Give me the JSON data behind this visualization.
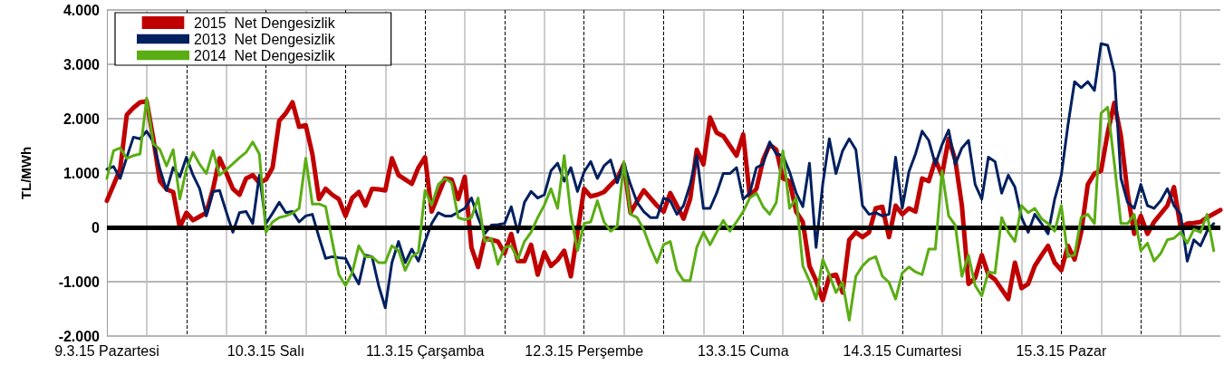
{
  "chart_data": {
    "type": "line",
    "ylabel": "TL/MWh",
    "categories": [
      "9.3.15 Pazartesi",
      null,
      null,
      null,
      null,
      null,
      null,
      null,
      null,
      null,
      null,
      null,
      null,
      null,
      null,
      null,
      null,
      null,
      null,
      null,
      null,
      null,
      null,
      null,
      "10.3.15 Salı",
      null,
      null,
      null,
      null,
      null,
      null,
      null,
      null,
      null,
      null,
      null,
      null,
      null,
      null,
      null,
      null,
      null,
      null,
      null,
      null,
      null,
      null,
      null,
      "11.3.15 Çarşamba",
      null,
      null,
      null,
      null,
      null,
      null,
      null,
      null,
      null,
      null,
      null,
      null,
      null,
      null,
      null,
      null,
      null,
      null,
      null,
      null,
      null,
      null,
      null,
      "12.3.15 Perşembe",
      null,
      null,
      null,
      null,
      null,
      null,
      null,
      null,
      null,
      null,
      null,
      null,
      null,
      null,
      null,
      null,
      null,
      null,
      null,
      null,
      null,
      null,
      null,
      "13.3.15 Cuma",
      null,
      null,
      null,
      null,
      null,
      null,
      null,
      null,
      null,
      null,
      null,
      null,
      null,
      null,
      null,
      null,
      null,
      null,
      null,
      null,
      null,
      null,
      null,
      "14.3.15 Cumartesi",
      null,
      null,
      null,
      null,
      null,
      null,
      null,
      null,
      null,
      null,
      null,
      null,
      null,
      null,
      null,
      null,
      null,
      null,
      null,
      null,
      null,
      null,
      null,
      "15.3.15 Pazar",
      null,
      null,
      null,
      null,
      null,
      null,
      null,
      null,
      null,
      null,
      null,
      null,
      null,
      null,
      null,
      null,
      null,
      null,
      null,
      null,
      null,
      null,
      null,
      null
    ],
    "ylim": [
      -2000,
      4000
    ],
    "yticks": [
      {
        "value": -2000,
        "label": "-2.000"
      },
      {
        "value": -1000,
        "label": "-1.000"
      },
      {
        "value": 0,
        "label": "0"
      },
      {
        "value": 1000,
        "label": "1.000"
      },
      {
        "value": 2000,
        "label": "2.000"
      },
      {
        "value": 3000,
        "label": "3.000"
      },
      {
        "value": 4000,
        "label": "4.000"
      }
    ],
    "grid": true,
    "legend": "top left",
    "marker": "none",
    "line_style": "solid",
    "ref_lines": [
      {
        "axis": "y",
        "value": 0,
        "color": "#000000",
        "line_style": "solid"
      }
    ],
    "series": [
      {
        "name": "2015  Net Dengesizlik",
        "color": "#c00000",
        "values": [
          490,
          780,
          1070,
          2070,
          2200,
          2300,
          2320,
          1630,
          850,
          700,
          650,
          0,
          270,
          130,
          200,
          270,
          700,
          1270,
          1000,
          710,
          600,
          900,
          960,
          820,
          880,
          1100,
          1960,
          2100,
          2300,
          1850,
          1880,
          1350,
          520,
          710,
          600,
          520,
          210,
          540,
          650,
          400,
          710,
          700,
          680,
          1270,
          960,
          880,
          800,
          1100,
          1290,
          290,
          600,
          900,
          880,
          520,
          930,
          -370,
          -730,
          -200,
          -230,
          -260,
          -480,
          -120,
          -620,
          -620,
          -320,
          -870,
          -460,
          -710,
          -600,
          -430,
          -900,
          -100,
          710,
          570,
          600,
          650,
          780,
          900,
          1160,
          270,
          480,
          680,
          540,
          400,
          290,
          630,
          400,
          160,
          520,
          1430,
          1160,
          2020,
          1740,
          1680,
          1500,
          1320,
          1710,
          570,
          710,
          1240,
          1520,
          1430,
          900,
          850,
          290,
          100,
          -710,
          -980,
          -1340,
          -900,
          -870,
          -1200,
          -230,
          -90,
          -180,
          -90,
          350,
          380,
          -180,
          400,
          240,
          350,
          290,
          900,
          850,
          1240,
          960,
          1630,
          1240,
          400,
          -1040,
          -930,
          -510,
          -870,
          -960,
          -1140,
          -1320,
          -650,
          -1120,
          -1040,
          -710,
          -520,
          -340,
          -650,
          -790,
          -340,
          -590,
          -90,
          790,
          990,
          1040,
          1740,
          2290,
          1680,
          630,
          -120,
          210,
          -120,
          100,
          250,
          400,
          740,
          0,
          70,
          80,
          100,
          180,
          250,
          320
        ]
      },
      {
        "name": "2013  Net Dengesizlik",
        "color": "#002060",
        "values": [
          1070,
          1120,
          900,
          1290,
          1660,
          1630,
          1770,
          1570,
          1070,
          680,
          1100,
          930,
          1290,
          960,
          710,
          210,
          660,
          680,
          290,
          -90,
          270,
          290,
          70,
          960,
          70,
          260,
          460,
          270,
          290,
          100,
          210,
          240,
          -180,
          -570,
          -540,
          -560,
          -570,
          -820,
          -1040,
          -510,
          -540,
          -1070,
          -1480,
          -650,
          -260,
          -650,
          -400,
          -620,
          -260,
          70,
          270,
          210,
          210,
          280,
          350,
          540,
          180,
          -120,
          40,
          50,
          70,
          380,
          -90,
          460,
          660,
          540,
          600,
          1040,
          1180,
          850,
          1100,
          660,
          1020,
          1210,
          900,
          1130,
          1240,
          820,
          1180,
          790,
          460,
          290,
          180,
          180,
          540,
          490,
          240,
          400,
          790,
          1320,
          350,
          350,
          630,
          990,
          990,
          1100,
          520,
          630,
          1100,
          1160,
          1570,
          1350,
          1320,
          1020,
          630,
          380,
          1180,
          -370,
          790,
          1630,
          990,
          1410,
          1630,
          1430,
          400,
          240,
          270,
          210,
          240,
          1290,
          350,
          1020,
          1350,
          1770,
          1600,
          1160,
          1520,
          1790,
          1160,
          1460,
          1600,
          790,
          520,
          1290,
          1210,
          630,
          960,
          740,
          180,
          -90,
          240,
          70,
          -120,
          520,
          960,
          1880,
          2680,
          2570,
          2680,
          2520,
          3380,
          3350,
          2850,
          900,
          460,
          350,
          790,
          400,
          350,
          490,
          710,
          400,
          240,
          -620,
          -230,
          -340,
          -70,
          70,
          null
        ]
      },
      {
        "name": "2014  Net Dengesizlik",
        "color": "#5aad13",
        "values": [
          900,
          1410,
          1460,
          1270,
          1320,
          1350,
          2380,
          1540,
          1430,
          1130,
          1430,
          520,
          1070,
          1380,
          1160,
          990,
          1410,
          960,
          1060,
          1170,
          1280,
          1380,
          1570,
          1350,
          -90,
          100,
          180,
          210,
          260,
          350,
          1270,
          430,
          430,
          380,
          -260,
          -870,
          -1070,
          -840,
          -340,
          -540,
          -540,
          -650,
          -650,
          -340,
          -430,
          -790,
          -540,
          -460,
          680,
          410,
          790,
          900,
          820,
          180,
          140,
          180,
          540,
          -260,
          -200,
          -680,
          -370,
          -340,
          -590,
          -260,
          -90,
          180,
          410,
          710,
          350,
          1320,
          240,
          -430,
          70,
          100,
          490,
          100,
          -70,
          20,
          1210,
          240,
          180,
          -40,
          -370,
          -650,
          -320,
          -260,
          -790,
          -980,
          -980,
          -370,
          -90,
          -320,
          -90,
          130,
          -70,
          100,
          290,
          540,
          630,
          380,
          240,
          460,
          1410,
          350,
          540,
          -710,
          -980,
          -1320,
          -590,
          -870,
          -1200,
          -1010,
          -1710,
          -900,
          -710,
          -590,
          -540,
          -900,
          -1010,
          -1320,
          -840,
          -730,
          -820,
          -870,
          -400,
          -400,
          1040,
          210,
          40,
          -900,
          -510,
          -1070,
          -1260,
          -820,
          -840,
          180,
          -90,
          -260,
          400,
          270,
          350,
          160,
          70,
          -70,
          400,
          -540,
          -510,
          180,
          240,
          70,
          2100,
          2210,
          1180,
          70,
          70,
          240,
          -430,
          -290,
          -620,
          -480,
          -230,
          -200,
          -90,
          -290,
          -40,
          -90,
          240,
          -430,
          null
        ]
      }
    ]
  }
}
